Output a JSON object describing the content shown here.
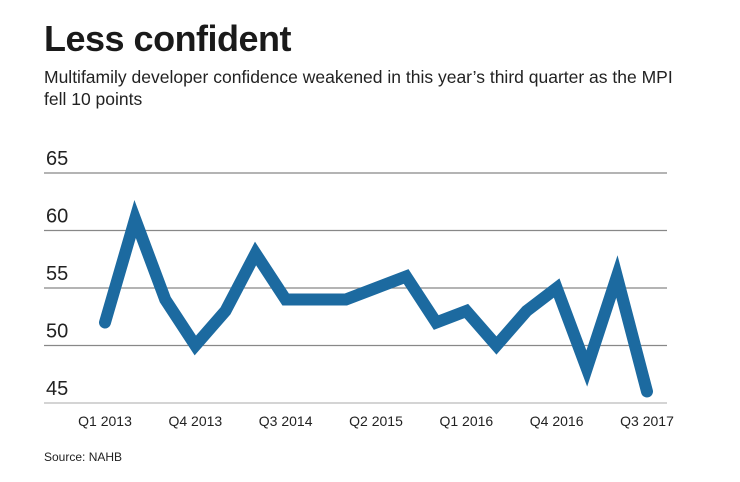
{
  "chart_data": {
    "type": "line",
    "title": "Less confident",
    "subtitle": "Multifamily developer confidence weakened in this year’s third quarter as the MPI fell 10 points",
    "source": "Source: NAHB",
    "xlabel": "",
    "ylabel": "",
    "x": [
      "Q1 2013",
      "Q2 2013",
      "Q3 2013",
      "Q4 2013",
      "Q1 2014",
      "Q2 2014",
      "Q3 2014",
      "Q4 2014",
      "Q1 2015",
      "Q2 2015",
      "Q3 2015",
      "Q4 2015",
      "Q1 2016",
      "Q2 2016",
      "Q3 2016",
      "Q4 2016",
      "Q1 2017",
      "Q2 2017",
      "Q3 2017"
    ],
    "x_tick_labels": [
      "Q1 2013",
      "Q4 2013",
      "Q3 2014",
      "Q2 2015",
      "Q1 2016",
      "Q4 2016",
      "Q3 2017"
    ],
    "series": [
      {
        "values": [
          52,
          61,
          54,
          50,
          53,
          58,
          54,
          54,
          54,
          55,
          56,
          52,
          53,
          50,
          53,
          55,
          48,
          56,
          46
        ],
        "color": "#1c6aa0"
      }
    ],
    "y_ticks": [
      45,
      50,
      55,
      60,
      65
    ],
    "ylim": [
      45,
      65
    ],
    "grid": true
  }
}
